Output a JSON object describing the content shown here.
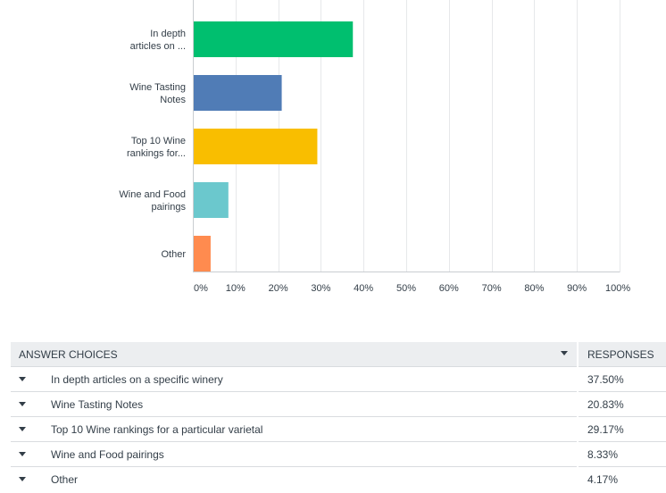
{
  "chart_data": {
    "type": "bar",
    "orientation": "horizontal",
    "categories": [
      [
        "In depth",
        "articles on ..."
      ],
      [
        "Wine Tasting",
        "Notes"
      ],
      [
        "Top 10 Wine",
        "rankings for..."
      ],
      [
        "Wine and Food",
        "pairings"
      ],
      [
        "Other"
      ]
    ],
    "values": [
      37.5,
      20.83,
      29.17,
      8.33,
      4.17
    ],
    "colors": [
      "#00bf6f",
      "#507cb6",
      "#f9be00",
      "#6bc8cd",
      "#ff8b4f"
    ],
    "xlim": [
      0,
      100
    ],
    "xticks": [
      "0%",
      "10%",
      "20%",
      "30%",
      "40%",
      "50%",
      "60%",
      "70%",
      "80%",
      "90%",
      "100%"
    ],
    "grid": true,
    "title": "",
    "xlabel": "",
    "ylabel": ""
  },
  "table": {
    "header_choices": "ANSWER CHOICES",
    "header_responses": "RESPONSES",
    "rows": [
      {
        "choice": "In depth articles on a specific winery",
        "response": "37.50%"
      },
      {
        "choice": "Wine Tasting Notes",
        "response": "20.83%"
      },
      {
        "choice": "Top 10 Wine rankings for a  particular varietal",
        "response": "29.17%"
      },
      {
        "choice": "Wine and Food pairings",
        "response": "8.33%"
      },
      {
        "choice": "Other",
        "response": "4.17%"
      }
    ]
  }
}
